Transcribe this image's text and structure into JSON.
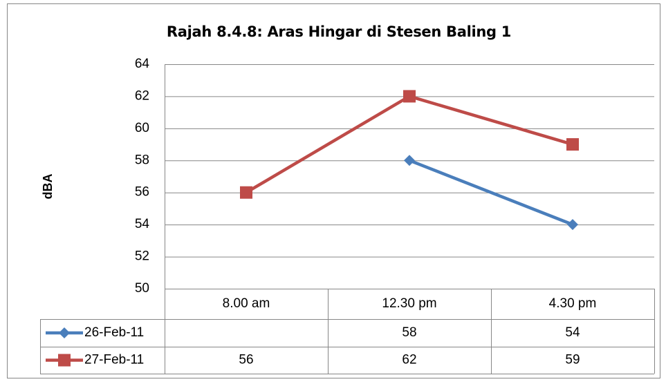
{
  "chart_data": {
    "type": "line",
    "title": "Rajah 8.4.8: Aras Hingar di Stesen Baling 1",
    "y_label": "dBA",
    "categories": [
      "8.00 am",
      "12.30 pm",
      "4.30 pm"
    ],
    "series": [
      {
        "name": "26-Feb-11",
        "color": "#4a7ebb",
        "marker": "diamond",
        "values": [
          null,
          58,
          54
        ]
      },
      {
        "name": "27-Feb-11",
        "color": "#be4b48",
        "marker": "square",
        "values": [
          56,
          62,
          59
        ]
      }
    ],
    "ylim": [
      50,
      64
    ],
    "yticks": [
      50,
      52,
      54,
      56,
      58,
      60,
      62,
      64
    ],
    "grid": true,
    "data_table": true
  }
}
